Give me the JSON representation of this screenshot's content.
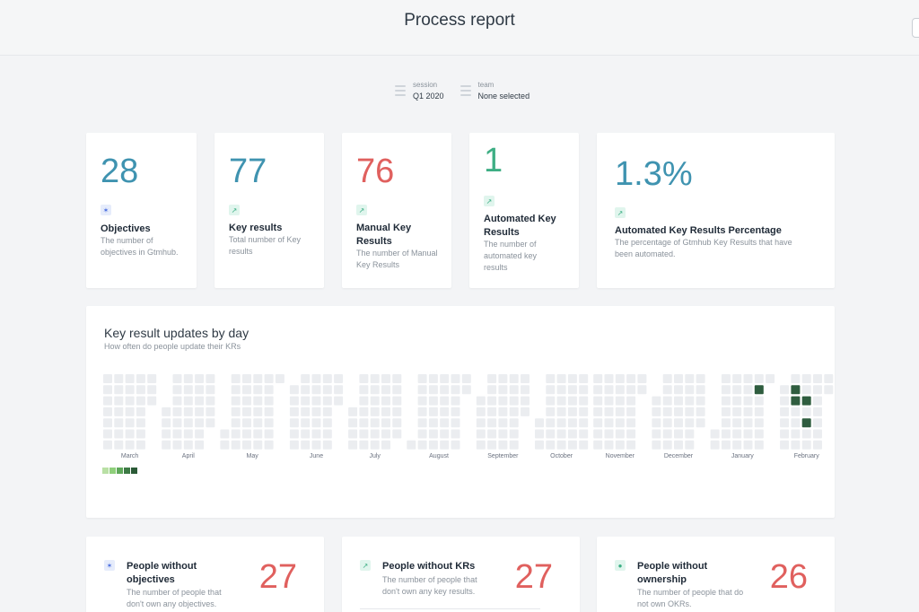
{
  "header": {
    "title": "Process report"
  },
  "filters": [
    {
      "label": "session",
      "value": "Q1 2020"
    },
    {
      "label": "team",
      "value": "None selected"
    }
  ],
  "stats": [
    {
      "value": "28",
      "title": "Objectives",
      "description": "The number of objectives in Gtmhub.",
      "icon": "objective-icon",
      "color": "#3f93b0"
    },
    {
      "value": "77",
      "title": "Key results",
      "description": "Total number of Key results",
      "icon": "trend-icon",
      "color": "#3f93b0"
    },
    {
      "value": "76",
      "title": "Manual Key Results",
      "description": "The number of Manual Key Results",
      "icon": "trend-icon",
      "color": "#e0605e"
    },
    {
      "value": "1",
      "title": "Automated Key Results",
      "description": "The number of automated key results",
      "icon": "trend-icon",
      "color": "#3eae84"
    },
    {
      "value": "1.3%",
      "title": "Automated Key Results Percentage",
      "description": "The percentage of Gtmhub Key Results that have been automated.",
      "icon": "trend-icon",
      "color": "#3f93b0"
    }
  ],
  "heatmap": {
    "title": "Key result updates by day",
    "subtitle": "How often do people update their KRs",
    "months": [
      "March",
      "April",
      "May",
      "June",
      "July",
      "August",
      "September",
      "October",
      "November",
      "December",
      "January",
      "February"
    ],
    "legend_colors": [
      "#b9e0a5",
      "#8fcf7b",
      "#5fa85a",
      "#3d7a45",
      "#2b5a37"
    ],
    "empty_color": "#ebedf0",
    "active_color": "#2f5d3f"
  },
  "chart_data": {
    "type": "heatmap",
    "title": "Key result updates by day",
    "subtitle": "How often do people update their KRs",
    "x": [
      "March",
      "April",
      "May",
      "June",
      "July",
      "August",
      "September",
      "October",
      "November",
      "December",
      "January",
      "February"
    ],
    "weeks_per_month": [
      5,
      5,
      5,
      5,
      5,
      5,
      5,
      5,
      5,
      5,
      5,
      5
    ],
    "start_weekday": [
      0,
      3,
      5,
      1,
      3,
      6,
      2,
      4,
      0,
      2,
      5,
      1
    ],
    "days_in_month": [
      31,
      30,
      31,
      30,
      31,
      31,
      30,
      31,
      30,
      31,
      31,
      29
    ],
    "active_days": [
      {
        "month": "January",
        "week": 4,
        "weekday": 1,
        "level": 4
      },
      {
        "month": "February",
        "week": 1,
        "weekday": 1,
        "level": 4
      },
      {
        "month": "February",
        "week": 1,
        "weekday": 2,
        "level": 4
      },
      {
        "month": "February",
        "week": 2,
        "weekday": 2,
        "level": 4
      },
      {
        "month": "February",
        "week": 2,
        "weekday": 4,
        "level": 4
      }
    ]
  },
  "bottom_cards": [
    {
      "title": "People without objectives",
      "description": "The number of people that don't own any objectives.",
      "value": "27",
      "icon": "objective-icon"
    },
    {
      "title": "People without KRs",
      "description": "The number of people that don't own any key results.",
      "value": "27",
      "icon": "trend-icon"
    },
    {
      "title": "People without ownership",
      "description": "The number of people that do not own OKRs.",
      "value": "26",
      "icon": "person-icon"
    }
  ]
}
